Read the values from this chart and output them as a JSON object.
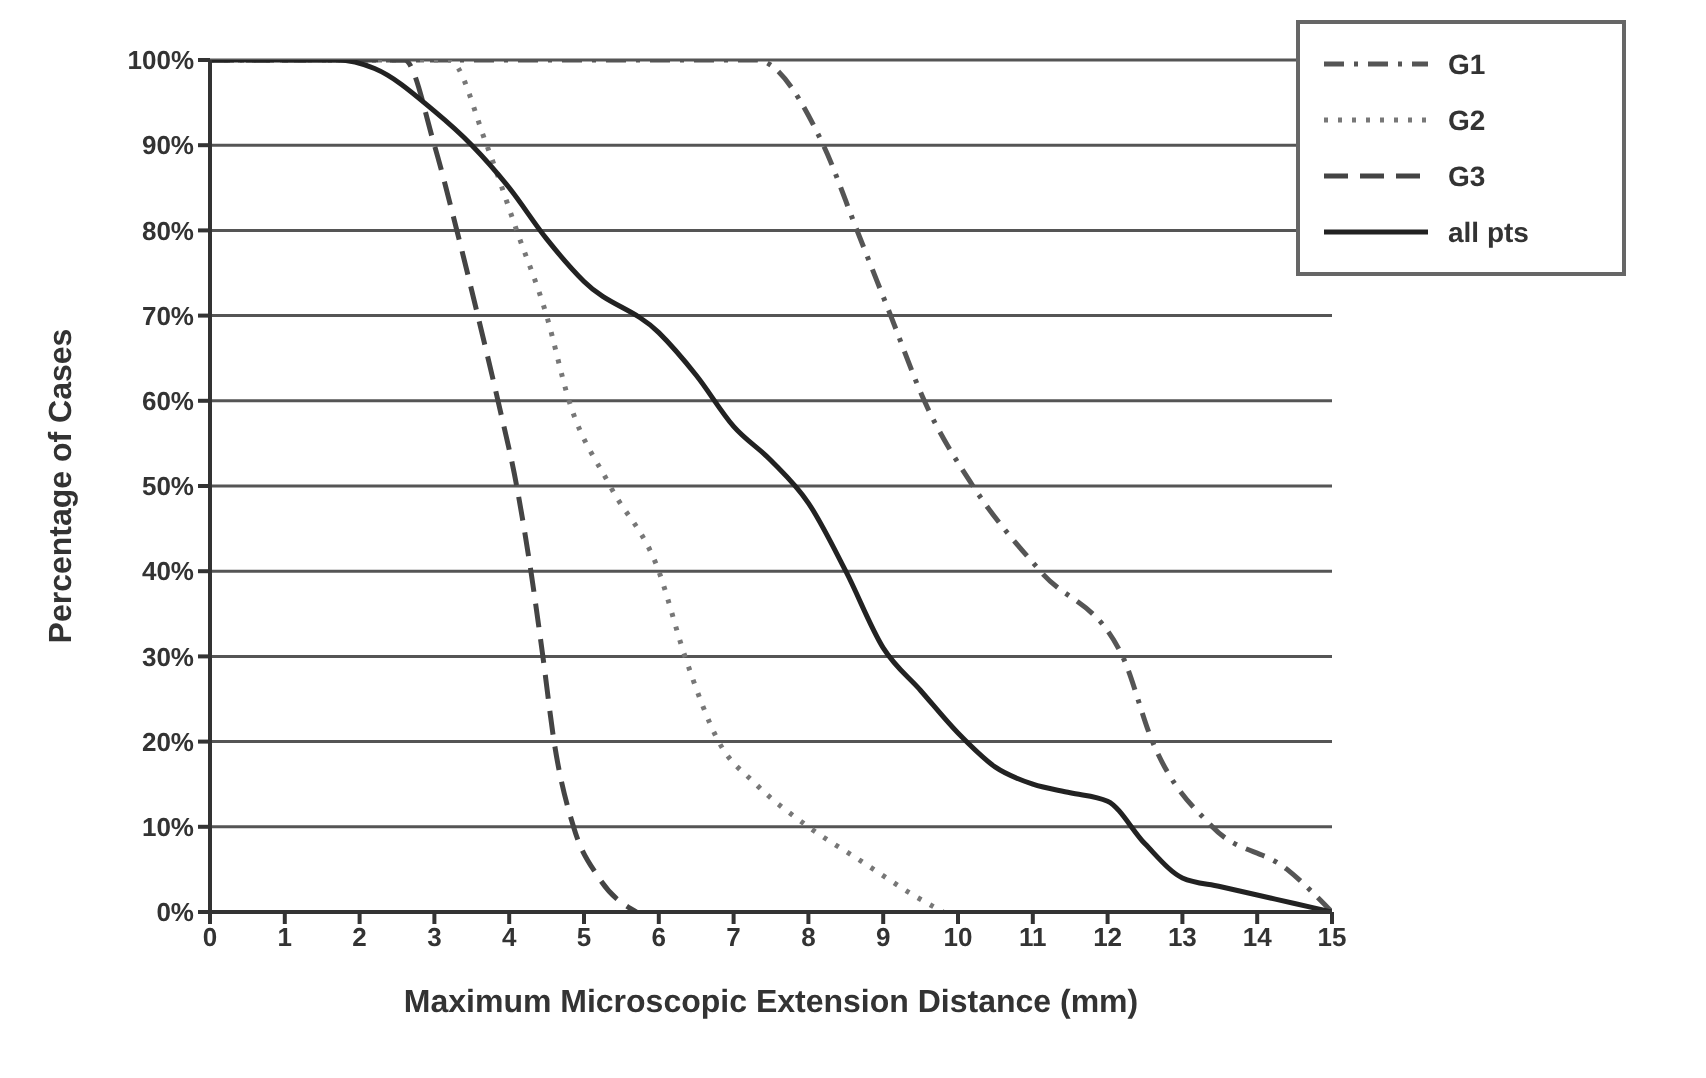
{
  "chart_data": {
    "type": "line",
    "xlabel": "Maximum Microscopic Extension Distance (mm)",
    "ylabel": "Percentage of Cases",
    "xlim": [
      0,
      15
    ],
    "xticks": [
      0,
      1,
      2,
      3,
      4,
      5,
      6,
      7,
      8,
      9,
      10,
      11,
      12,
      13,
      14,
      15
    ],
    "ylim": [
      0,
      100
    ],
    "yticks": [
      {
        "value": 0,
        "label": "0%"
      },
      {
        "value": 10,
        "label": "10%"
      },
      {
        "value": 20,
        "label": "20%"
      },
      {
        "value": 30,
        "label": "30%"
      },
      {
        "value": 40,
        "label": "40%"
      },
      {
        "value": 50,
        "label": "50%"
      },
      {
        "value": 60,
        "label": "60%"
      },
      {
        "value": 70,
        "label": "70%"
      },
      {
        "value": 80,
        "label": "80%"
      },
      {
        "value": 90,
        "label": "90%"
      },
      {
        "value": 100,
        "label": "100%"
      }
    ],
    "grid": "y",
    "legend": "top right",
    "marker": "none",
    "series": [
      {
        "name": "G1",
        "color": "#555555",
        "line_style": "dashdot",
        "x": [
          0,
          7.3,
          8.2,
          8.65,
          9.1,
          9.55,
          10.2,
          11.1,
          12.2,
          12.6,
          13.4,
          14.4,
          15
        ],
        "values": [
          100,
          100,
          90,
          80,
          70,
          60,
          50,
          40,
          30,
          20,
          10,
          5,
          0
        ]
      },
      {
        "name": "G2",
        "color": "#777777",
        "line_style": "dotted",
        "x": [
          0,
          3.2,
          3.7,
          4.1,
          4.5,
          4.8,
          5.35,
          6,
          6.35,
          6.8,
          7.3,
          8,
          8.7,
          9.4,
          9.8
        ],
        "values": [
          100,
          100,
          90,
          80,
          70,
          60,
          50,
          40,
          30,
          20,
          15,
          10,
          6,
          2,
          0
        ]
      },
      {
        "name": "G3",
        "color": "#444444",
        "line_style": "dashed",
        "x": [
          0,
          2.6,
          3,
          3.3,
          3.58,
          3.85,
          4.1,
          4.29,
          4.45,
          4.6,
          4.86,
          5.2,
          5.7
        ],
        "values": [
          100,
          100,
          90,
          80,
          70,
          60,
          50,
          40,
          30,
          20,
          10,
          4,
          0
        ]
      },
      {
        "name": "all pts",
        "color": "#222222",
        "line_style": "solid",
        "x": [
          0,
          1.7,
          2.2,
          3,
          3.5,
          4,
          4.5,
          5,
          6,
          6.5,
          7,
          7.5,
          8,
          8.5,
          9,
          9.5,
          10,
          10.5,
          11,
          11.5,
          12,
          12.5,
          13,
          13.5,
          14,
          14.5,
          15
        ],
        "values": [
          100,
          100,
          99,
          94,
          90,
          85,
          79,
          74,
          68,
          63,
          57,
          53,
          48,
          40,
          31,
          26,
          21,
          17,
          15,
          14,
          13,
          8,
          4,
          3,
          2,
          1,
          0
        ]
      }
    ]
  }
}
